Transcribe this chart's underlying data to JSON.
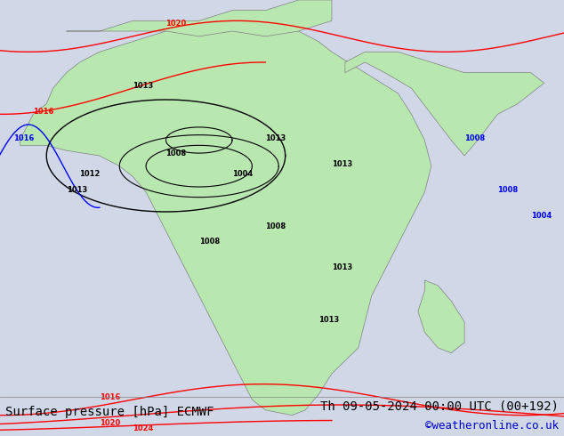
{
  "title_left": "Surface pressure [hPa] ECMWF",
  "title_right": "Th 09-05-2024 00:00 UTC (00+192)",
  "copyright": "©weatheronline.co.uk",
  "copyright_color": "#0000cc",
  "bg_color": "#d0d8e8",
  "land_color": "#b8e8b0",
  "text_color_black": "#000000",
  "text_color_red": "#cc0000",
  "text_color_blue": "#0000cc",
  "title_fontsize": 10,
  "copyright_fontsize": 9,
  "fig_width": 6.34,
  "fig_height": 4.9,
  "dpi": 100
}
